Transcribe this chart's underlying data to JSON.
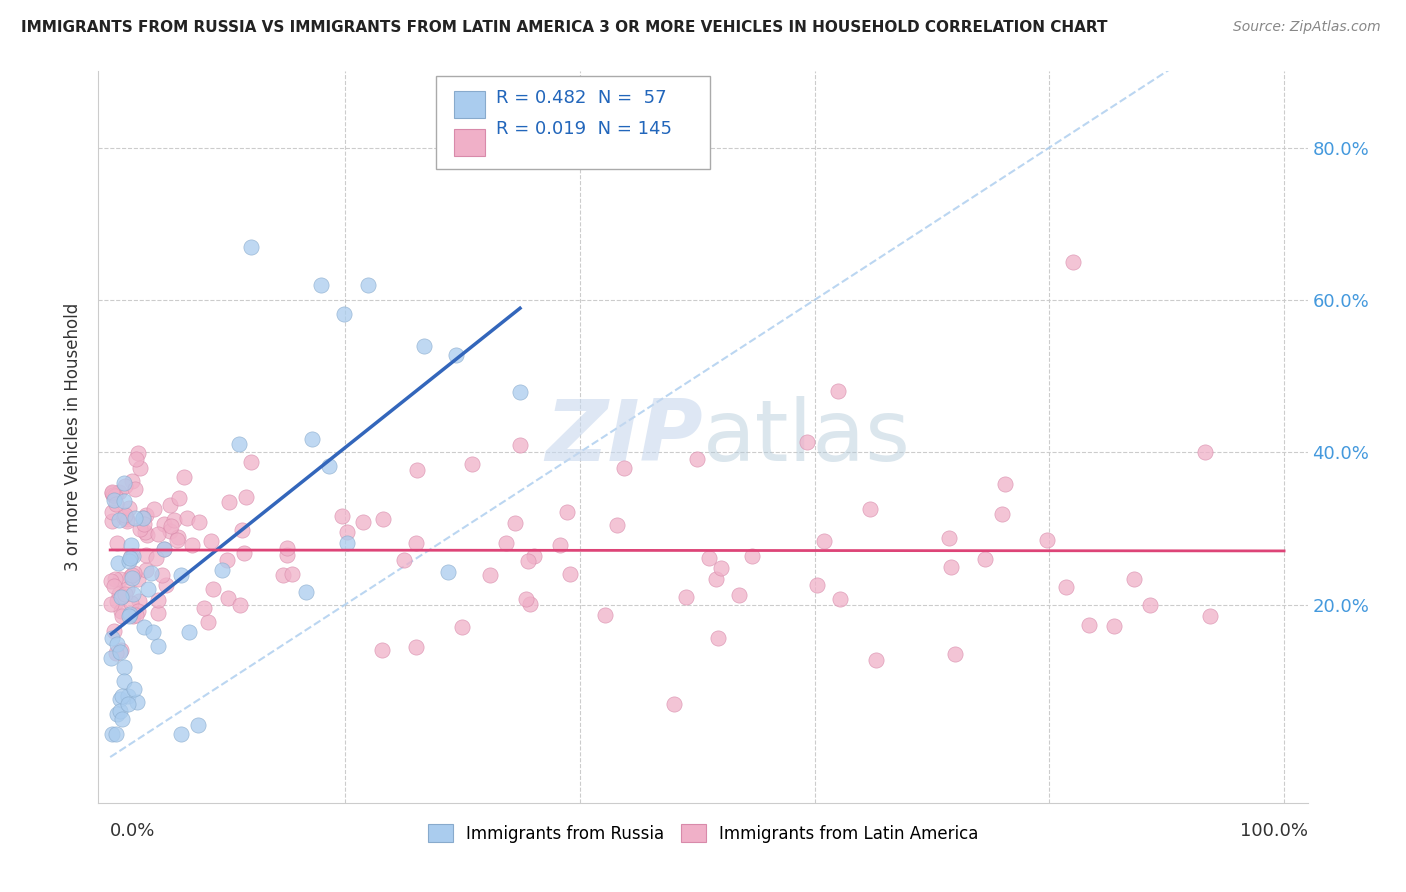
{
  "title": "IMMIGRANTS FROM RUSSIA VS IMMIGRANTS FROM LATIN AMERICA 3 OR MORE VEHICLES IN HOUSEHOLD CORRELATION CHART",
  "source": "Source: ZipAtlas.com",
  "ylabel": "3 or more Vehicles in Household",
  "russia_R": 0.482,
  "russia_N": 57,
  "latin_R": 0.019,
  "latin_N": 145,
  "russia_color": "#aaccee",
  "russia_edge_color": "#88aacc",
  "latin_color": "#f0b0c8",
  "latin_edge_color": "#d88aaa",
  "russia_line_color": "#3366bb",
  "latin_line_color": "#dd4477",
  "diag_line_color": "#aaccee",
  "watermark_color": "#c8d8ee",
  "background_color": "#ffffff",
  "grid_color": "#cccccc",
  "title_color": "#222222",
  "source_color": "#888888",
  "axis_label_color": "#4499dd",
  "text_color": "#333333"
}
